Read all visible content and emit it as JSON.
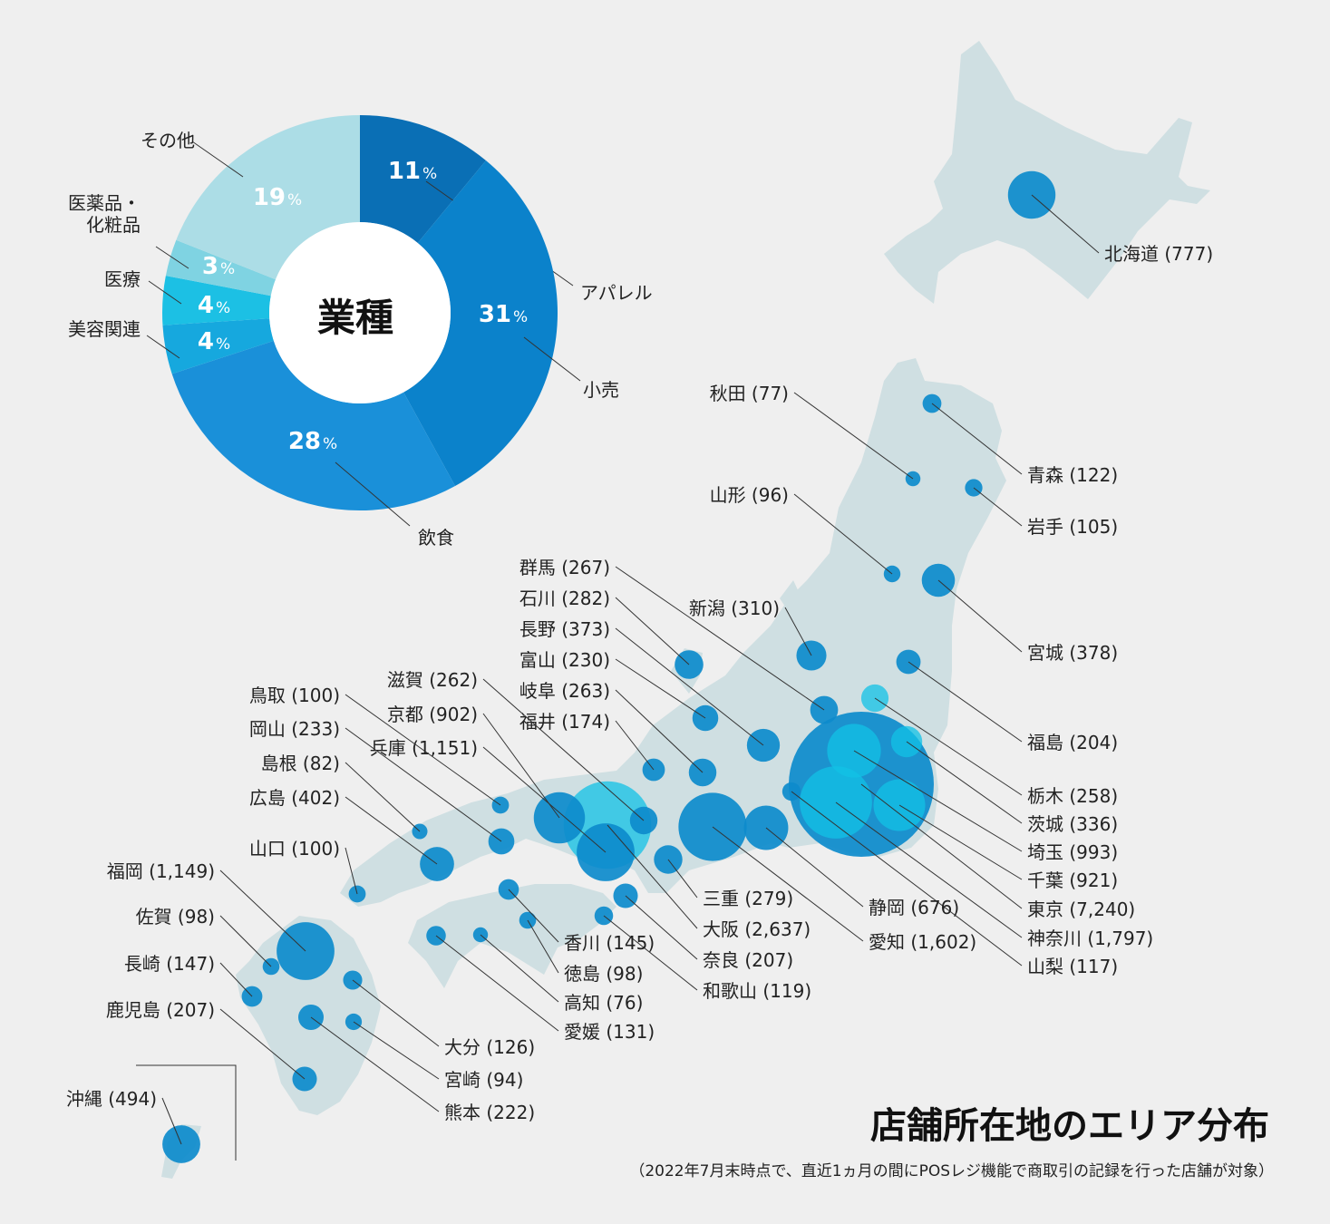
{
  "title": "店舗所在地のエリア分布",
  "note": "（2022年7月末時点で、直近1ヵ月の間にPOSレジ機能で商取引の記録を行った店舗が対象）",
  "chart_data": [
    {
      "type": "pie",
      "title": "業種",
      "slices": [
        {
          "label": "アパレル",
          "value": 11,
          "color": "#0a6fb5"
        },
        {
          "label": "小売",
          "value": 31,
          "color": "#0b82cb"
        },
        {
          "label": "飲食",
          "value": 28,
          "color": "#1a90d9"
        },
        {
          "label": "美容関連",
          "value": 4,
          "color": "#16a8de"
        },
        {
          "label": "医療",
          "value": 4,
          "color": "#1cc0e4"
        },
        {
          "label": "医薬品・\n化粧品",
          "value": 3,
          "color": "#7fd3e2"
        },
        {
          "label": "その他",
          "value": 19,
          "color": "#acdde6"
        }
      ],
      "percent_symbol": "%"
    },
    {
      "type": "scatter",
      "title": "店舗所在地のエリア分布",
      "series": [
        {
          "prefecture": "北海道",
          "value": 777
        },
        {
          "prefecture": "青森",
          "value": 122
        },
        {
          "prefecture": "岩手",
          "value": 105
        },
        {
          "prefecture": "秋田",
          "value": 77
        },
        {
          "prefecture": "山形",
          "value": 96
        },
        {
          "prefecture": "宮城",
          "value": 378
        },
        {
          "prefecture": "福島",
          "value": 204
        },
        {
          "prefecture": "新潟",
          "value": 310
        },
        {
          "prefecture": "群馬",
          "value": 267
        },
        {
          "prefecture": "栃木",
          "value": 258
        },
        {
          "prefecture": "茨城",
          "value": 336
        },
        {
          "prefecture": "埼玉",
          "value": 993
        },
        {
          "prefecture": "千葉",
          "value": 921
        },
        {
          "prefecture": "東京",
          "value": 7240
        },
        {
          "prefecture": "神奈川",
          "value": 1797
        },
        {
          "prefecture": "山梨",
          "value": 117
        },
        {
          "prefecture": "石川",
          "value": 282
        },
        {
          "prefecture": "長野",
          "value": 373
        },
        {
          "prefecture": "富山",
          "value": 230
        },
        {
          "prefecture": "岐阜",
          "value": 263
        },
        {
          "prefecture": "福井",
          "value": 174
        },
        {
          "prefecture": "静岡",
          "value": 676
        },
        {
          "prefecture": "愛知",
          "value": 1602
        },
        {
          "prefecture": "滋賀",
          "value": 262
        },
        {
          "prefecture": "京都",
          "value": 902
        },
        {
          "prefecture": "兵庫",
          "value": 1151
        },
        {
          "prefecture": "三重",
          "value": 279
        },
        {
          "prefecture": "大阪",
          "value": 2637
        },
        {
          "prefecture": "奈良",
          "value": 207
        },
        {
          "prefecture": "和歌山",
          "value": 119
        },
        {
          "prefecture": "鳥取",
          "value": 100
        },
        {
          "prefecture": "岡山",
          "value": 233
        },
        {
          "prefecture": "島根",
          "value": 82
        },
        {
          "prefecture": "広島",
          "value": 402
        },
        {
          "prefecture": "山口",
          "value": 100
        },
        {
          "prefecture": "香川",
          "value": 145
        },
        {
          "prefecture": "徳島",
          "value": 98
        },
        {
          "prefecture": "高知",
          "value": 76
        },
        {
          "prefecture": "愛媛",
          "value": 131
        },
        {
          "prefecture": "福岡",
          "value": 1149
        },
        {
          "prefecture": "佐賀",
          "value": 98
        },
        {
          "prefecture": "長崎",
          "value": 147
        },
        {
          "prefecture": "鹿児島",
          "value": 207
        },
        {
          "prefecture": "大分",
          "value": 126
        },
        {
          "prefecture": "宮崎",
          "value": 94
        },
        {
          "prefecture": "熊本",
          "value": 222
        },
        {
          "prefecture": "沖縄",
          "value": 494
        }
      ]
    }
  ],
  "colors": {
    "background": "#efefef",
    "land": "#cfdfe2",
    "bubble": "#0d8bcc",
    "bubble_light": "#12c1e6"
  }
}
